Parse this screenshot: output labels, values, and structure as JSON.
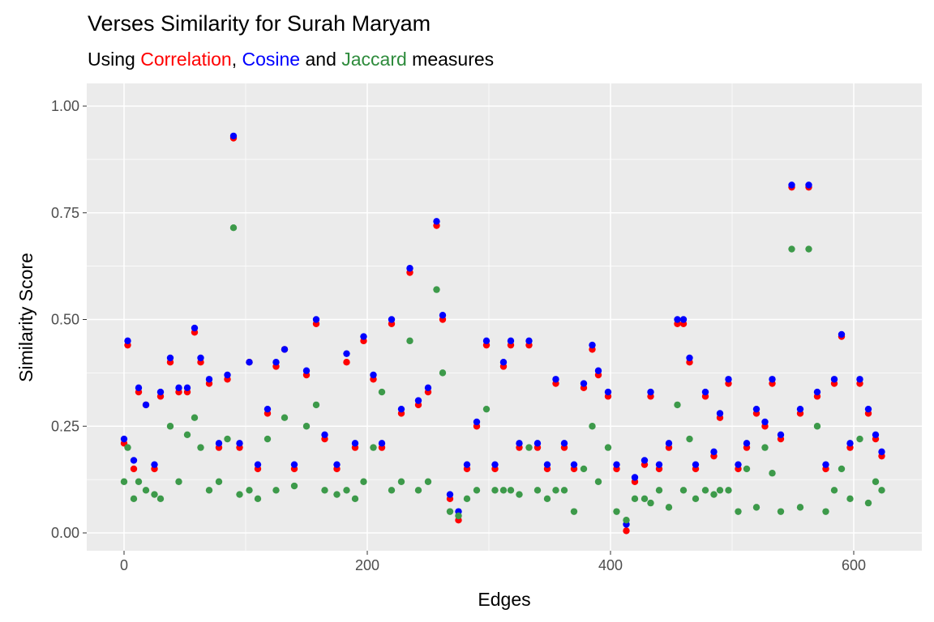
{
  "chart_data": {
    "type": "scatter",
    "title": "Verses Similarity for Surah Maryam",
    "subtitle_parts": [
      {
        "text": "Using ",
        "color": "#000000"
      },
      {
        "text": "Correlation",
        "color": "#FF0000"
      },
      {
        "text": ", ",
        "color": "#000000"
      },
      {
        "text": "Cosine",
        "color": "#0000FF"
      },
      {
        "text": " and ",
        "color": "#000000"
      },
      {
        "text": "Jaccard",
        "color": "#2E8B3C"
      },
      {
        "text": " measures",
        "color": "#000000"
      }
    ],
    "xlabel": "Edges",
    "ylabel": "Similarity Score",
    "xlim": [
      -30,
      655
    ],
    "ylim": [
      -0.045,
      1.05
    ],
    "xticks": [
      0,
      200,
      400,
      600
    ],
    "xtick_labels": [
      "0",
      "200",
      "400",
      "600"
    ],
    "yticks": [
      0,
      0.25,
      0.5,
      0.75,
      1.0
    ],
    "ytick_labels": [
      "0.00",
      "0.25",
      "0.50",
      "0.75",
      "1.00"
    ],
    "grid": true,
    "x": [
      0,
      3,
      8,
      12,
      18,
      25,
      30,
      38,
      45,
      52,
      58,
      63,
      70,
      78,
      85,
      90,
      95,
      103,
      110,
      118,
      125,
      132,
      140,
      150,
      158,
      165,
      175,
      183,
      190,
      197,
      205,
      212,
      220,
      228,
      235,
      242,
      250,
      257,
      262,
      268,
      275,
      282,
      290,
      298,
      305,
      312,
      318,
      325,
      333,
      340,
      348,
      355,
      362,
      370,
      378,
      385,
      390,
      398,
      405,
      413,
      420,
      428,
      433,
      440,
      448,
      455,
      460,
      465,
      470,
      478,
      485,
      490,
      497,
      505,
      512,
      520,
      527,
      533,
      540,
      549,
      556,
      563,
      570,
      577,
      584,
      590,
      597,
      605,
      612,
      618,
      623
    ],
    "series": [
      {
        "color": "#FF0000",
        "values": [
          0.21,
          0.44,
          0.15,
          0.33,
          0.3,
          0.15,
          0.32,
          0.4,
          0.33,
          0.33,
          0.47,
          0.4,
          0.35,
          0.2,
          0.36,
          0.925,
          0.2,
          0.4,
          0.15,
          0.28,
          0.39,
          0.43,
          0.15,
          0.37,
          0.49,
          0.22,
          0.15,
          0.4,
          0.2,
          0.45,
          0.36,
          0.2,
          0.49,
          0.28,
          0.61,
          0.3,
          0.33,
          0.72,
          0.5,
          0.08,
          0.03,
          0.15,
          0.25,
          0.44,
          0.15,
          0.39,
          0.44,
          0.2,
          0.44,
          0.2,
          0.15,
          0.35,
          0.2,
          0.15,
          0.34,
          0.43,
          0.37,
          0.32,
          0.15,
          0.005,
          0.12,
          0.16,
          0.32,
          0.15,
          0.2,
          0.49,
          0.49,
          0.4,
          0.15,
          0.32,
          0.18,
          0.27,
          0.35,
          0.15,
          0.2,
          0.28,
          0.25,
          0.35,
          0.22,
          0.81,
          0.28,
          0.81,
          0.32,
          0.15,
          0.35,
          0.46,
          0.2,
          0.35,
          0.28,
          0.22,
          0.18
        ]
      },
      {
        "color": "#0000FF",
        "values": [
          0.22,
          0.45,
          0.17,
          0.34,
          0.3,
          0.16,
          0.33,
          0.41,
          0.34,
          0.34,
          0.48,
          0.41,
          0.36,
          0.21,
          0.37,
          0.93,
          0.21,
          0.4,
          0.16,
          0.29,
          0.4,
          0.43,
          0.16,
          0.38,
          0.5,
          0.23,
          0.16,
          0.42,
          0.21,
          0.46,
          0.37,
          0.21,
          0.5,
          0.29,
          0.62,
          0.31,
          0.34,
          0.73,
          0.51,
          0.09,
          0.05,
          0.16,
          0.26,
          0.45,
          0.16,
          0.4,
          0.45,
          0.21,
          0.45,
          0.21,
          0.16,
          0.36,
          0.21,
          0.16,
          0.35,
          0.44,
          0.38,
          0.33,
          0.16,
          0.02,
          0.13,
          0.17,
          0.33,
          0.16,
          0.21,
          0.5,
          0.5,
          0.41,
          0.16,
          0.33,
          0.19,
          0.28,
          0.36,
          0.16,
          0.21,
          0.29,
          0.26,
          0.36,
          0.23,
          0.815,
          0.29,
          0.815,
          0.33,
          0.16,
          0.36,
          0.465,
          0.21,
          0.36,
          0.29,
          0.23,
          0.19
        ]
      },
      {
        "color": "#3D9A4A",
        "values": [
          0.12,
          0.2,
          0.08,
          0.12,
          0.1,
          0.09,
          0.08,
          0.25,
          0.12,
          0.23,
          0.27,
          0.2,
          0.1,
          0.12,
          0.22,
          0.715,
          0.09,
          0.1,
          0.08,
          0.22,
          0.1,
          0.27,
          0.11,
          0.25,
          0.3,
          0.1,
          0.09,
          0.1,
          0.08,
          0.12,
          0.2,
          0.33,
          0.1,
          0.12,
          0.45,
          0.1,
          0.12,
          0.57,
          0.375,
          0.05,
          0.04,
          0.08,
          0.1,
          0.29,
          0.1,
          0.1,
          0.1,
          0.09,
          0.2,
          0.1,
          0.08,
          0.1,
          0.1,
          0.05,
          0.15,
          0.25,
          0.12,
          0.2,
          0.05,
          0.03,
          0.08,
          0.08,
          0.07,
          0.1,
          0.06,
          0.3,
          0.1,
          0.22,
          0.08,
          0.1,
          0.09,
          0.1,
          0.1,
          0.05,
          0.15,
          0.06,
          0.2,
          0.14,
          0.05,
          0.665,
          0.06,
          0.665,
          0.25,
          0.05,
          0.1,
          0.15,
          0.08,
          0.22,
          0.07,
          0.12,
          0.1
        ]
      }
    ]
  }
}
